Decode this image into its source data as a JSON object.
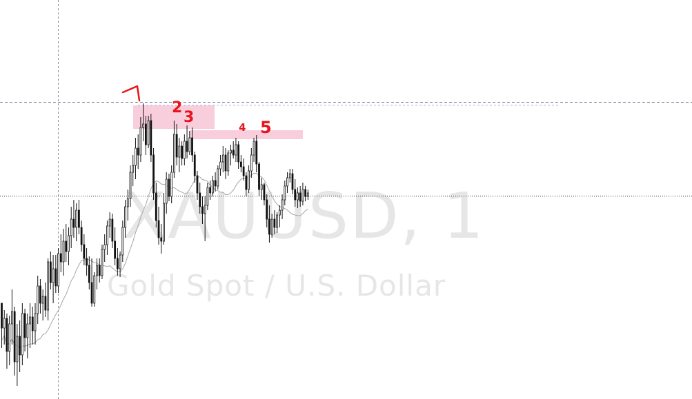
{
  "watermark": {
    "symbol": "XAUUSD, 1",
    "description": "Gold Spot / U.S. Dollar"
  },
  "colors": {
    "candle": "#111111",
    "moving_average": "#a6a6a6",
    "zone": "#f7c6d6",
    "annotation": "#e8141c",
    "guide_line": "#8a8fa8"
  },
  "annotations": [
    "1",
    "2",
    "3",
    "4",
    "5"
  ],
  "chart_data": {
    "type": "candlestick",
    "series": [
      {
        "o": 440,
        "h": 462,
        "l": 505,
        "c": 476
      },
      {
        "o": 476,
        "h": 450,
        "l": 500,
        "c": 462
      },
      {
        "o": 462,
        "h": 455,
        "l": 535,
        "c": 510
      },
      {
        "o": 510,
        "h": 458,
        "l": 530,
        "c": 470
      },
      {
        "o": 470,
        "h": 420,
        "l": 500,
        "c": 452
      },
      {
        "o": 452,
        "h": 445,
        "l": 545,
        "c": 525
      },
      {
        "o": 525,
        "h": 470,
        "l": 560,
        "c": 488
      },
      {
        "o": 488,
        "h": 465,
        "l": 540,
        "c": 515
      },
      {
        "o": 515,
        "h": 440,
        "l": 530,
        "c": 455
      },
      {
        "o": 455,
        "h": 448,
        "l": 510,
        "c": 490
      },
      {
        "o": 490,
        "h": 455,
        "l": 520,
        "c": 470
      },
      {
        "o": 470,
        "h": 440,
        "l": 505,
        "c": 460
      },
      {
        "o": 460,
        "h": 445,
        "l": 500,
        "c": 480
      },
      {
        "o": 480,
        "h": 440,
        "l": 500,
        "c": 455
      },
      {
        "o": 455,
        "h": 400,
        "l": 470,
        "c": 415
      },
      {
        "o": 415,
        "h": 405,
        "l": 455,
        "c": 440
      },
      {
        "o": 440,
        "h": 420,
        "l": 465,
        "c": 430
      },
      {
        "o": 430,
        "h": 410,
        "l": 460,
        "c": 450
      },
      {
        "o": 450,
        "h": 375,
        "l": 465,
        "c": 380
      },
      {
        "o": 380,
        "h": 365,
        "l": 420,
        "c": 410
      },
      {
        "o": 410,
        "h": 370,
        "l": 440,
        "c": 390
      },
      {
        "o": 390,
        "h": 370,
        "l": 425,
        "c": 415
      },
      {
        "o": 415,
        "h": 360,
        "l": 425,
        "c": 368
      },
      {
        "o": 368,
        "h": 340,
        "l": 395,
        "c": 380
      },
      {
        "o": 380,
        "h": 332,
        "l": 400,
        "c": 350
      },
      {
        "o": 350,
        "h": 325,
        "l": 380,
        "c": 365
      },
      {
        "o": 365,
        "h": 330,
        "l": 385,
        "c": 342
      },
      {
        "o": 342,
        "h": 300,
        "l": 360,
        "c": 318
      },
      {
        "o": 318,
        "h": 290,
        "l": 345,
        "c": 330
      },
      {
        "o": 330,
        "h": 295,
        "l": 350,
        "c": 305
      },
      {
        "o": 305,
        "h": 290,
        "l": 340,
        "c": 330
      },
      {
        "o": 330,
        "h": 320,
        "l": 365,
        "c": 355
      },
      {
        "o": 355,
        "h": 340,
        "l": 385,
        "c": 375
      },
      {
        "o": 375,
        "h": 360,
        "l": 400,
        "c": 385
      },
      {
        "o": 385,
        "h": 372,
        "l": 420,
        "c": 410
      },
      {
        "o": 410,
        "h": 375,
        "l": 445,
        "c": 440
      },
      {
        "o": 440,
        "h": 395,
        "l": 445,
        "c": 400
      },
      {
        "o": 400,
        "h": 375,
        "l": 420,
        "c": 385
      },
      {
        "o": 385,
        "h": 375,
        "l": 410,
        "c": 400
      },
      {
        "o": 400,
        "h": 355,
        "l": 405,
        "c": 362
      },
      {
        "o": 362,
        "h": 340,
        "l": 380,
        "c": 355
      },
      {
        "o": 355,
        "h": 320,
        "l": 370,
        "c": 328
      },
      {
        "o": 328,
        "h": 308,
        "l": 345,
        "c": 318
      },
      {
        "o": 318,
        "h": 310,
        "l": 360,
        "c": 350
      },
      {
        "o": 350,
        "h": 330,
        "l": 385,
        "c": 375
      },
      {
        "o": 375,
        "h": 360,
        "l": 400,
        "c": 390
      },
      {
        "o": 390,
        "h": 365,
        "l": 402,
        "c": 370
      },
      {
        "o": 370,
        "h": 320,
        "l": 380,
        "c": 330
      },
      {
        "o": 330,
        "h": 290,
        "l": 345,
        "c": 300
      },
      {
        "o": 300,
        "h": 275,
        "l": 320,
        "c": 288
      },
      {
        "o": 288,
        "h": 240,
        "l": 300,
        "c": 250
      },
      {
        "o": 250,
        "h": 225,
        "l": 270,
        "c": 240
      },
      {
        "o": 240,
        "h": 200,
        "l": 260,
        "c": 215
      },
      {
        "o": 215,
        "h": 195,
        "l": 245,
        "c": 225
      },
      {
        "o": 225,
        "h": 170,
        "l": 235,
        "c": 185
      },
      {
        "o": 185,
        "h": 150,
        "l": 205,
        "c": 180
      },
      {
        "o": 180,
        "h": 168,
        "l": 225,
        "c": 210
      },
      {
        "o": 210,
        "h": 168,
        "l": 215,
        "c": 175
      },
      {
        "o": 175,
        "h": 165,
        "l": 235,
        "c": 225
      },
      {
        "o": 225,
        "h": 215,
        "l": 290,
        "c": 280
      },
      {
        "o": 280,
        "h": 265,
        "l": 330,
        "c": 320
      },
      {
        "o": 320,
        "h": 300,
        "l": 355,
        "c": 345
      },
      {
        "o": 345,
        "h": 325,
        "l": 368,
        "c": 350
      },
      {
        "o": 350,
        "h": 280,
        "l": 355,
        "c": 295
      },
      {
        "o": 295,
        "h": 250,
        "l": 310,
        "c": 260
      },
      {
        "o": 260,
        "h": 252,
        "l": 292,
        "c": 285
      },
      {
        "o": 285,
        "h": 240,
        "l": 295,
        "c": 250
      },
      {
        "o": 250,
        "h": 175,
        "l": 258,
        "c": 195
      },
      {
        "o": 195,
        "h": 180,
        "l": 240,
        "c": 228
      },
      {
        "o": 228,
        "h": 200,
        "l": 250,
        "c": 212
      },
      {
        "o": 212,
        "h": 205,
        "l": 240,
        "c": 230
      },
      {
        "o": 230,
        "h": 195,
        "l": 240,
        "c": 205
      },
      {
        "o": 205,
        "h": 182,
        "l": 230,
        "c": 220
      },
      {
        "o": 220,
        "h": 190,
        "l": 225,
        "c": 200
      },
      {
        "o": 200,
        "h": 185,
        "l": 235,
        "c": 225
      },
      {
        "o": 225,
        "h": 220,
        "l": 265,
        "c": 255
      },
      {
        "o": 255,
        "h": 248,
        "l": 290,
        "c": 280
      },
      {
        "o": 280,
        "h": 265,
        "l": 310,
        "c": 300
      },
      {
        "o": 300,
        "h": 285,
        "l": 325,
        "c": 310
      },
      {
        "o": 310,
        "h": 285,
        "l": 350,
        "c": 298
      },
      {
        "o": 298,
        "h": 265,
        "l": 305,
        "c": 272
      },
      {
        "o": 272,
        "h": 262,
        "l": 290,
        "c": 280
      },
      {
        "o": 280,
        "h": 255,
        "l": 285,
        "c": 262
      },
      {
        "o": 262,
        "h": 250,
        "l": 278,
        "c": 270
      },
      {
        "o": 270,
        "h": 240,
        "l": 275,
        "c": 245
      },
      {
        "o": 245,
        "h": 225,
        "l": 255,
        "c": 235
      },
      {
        "o": 235,
        "h": 212,
        "l": 250,
        "c": 225
      },
      {
        "o": 225,
        "h": 215,
        "l": 260,
        "c": 248
      },
      {
        "o": 248,
        "h": 218,
        "l": 255,
        "c": 222
      },
      {
        "o": 222,
        "h": 210,
        "l": 240,
        "c": 218
      },
      {
        "o": 218,
        "h": 205,
        "l": 230,
        "c": 225
      },
      {
        "o": 225,
        "h": 200,
        "l": 235,
        "c": 210
      },
      {
        "o": 210,
        "h": 205,
        "l": 245,
        "c": 235
      },
      {
        "o": 235,
        "h": 225,
        "l": 250,
        "c": 242
      },
      {
        "o": 242,
        "h": 230,
        "l": 262,
        "c": 255
      },
      {
        "o": 255,
        "h": 250,
        "l": 285,
        "c": 275
      },
      {
        "o": 275,
        "h": 240,
        "l": 280,
        "c": 248
      },
      {
        "o": 248,
        "h": 215,
        "l": 258,
        "c": 225
      },
      {
        "o": 225,
        "h": 200,
        "l": 235,
        "c": 205
      },
      {
        "o": 205,
        "h": 196,
        "l": 250,
        "c": 238
      },
      {
        "o": 238,
        "h": 235,
        "l": 285,
        "c": 275
      },
      {
        "o": 275,
        "h": 258,
        "l": 290,
        "c": 268
      },
      {
        "o": 268,
        "h": 265,
        "l": 298,
        "c": 290
      },
      {
        "o": 290,
        "h": 282,
        "l": 330,
        "c": 318
      },
      {
        "o": 318,
        "h": 298,
        "l": 352,
        "c": 340
      },
      {
        "o": 340,
        "h": 310,
        "l": 345,
        "c": 318
      },
      {
        "o": 318,
        "h": 305,
        "l": 340,
        "c": 330
      },
      {
        "o": 330,
        "h": 308,
        "l": 338,
        "c": 312
      },
      {
        "o": 312,
        "h": 298,
        "l": 330,
        "c": 305
      },
      {
        "o": 305,
        "h": 282,
        "l": 318,
        "c": 290
      },
      {
        "o": 290,
        "h": 262,
        "l": 298,
        "c": 270
      },
      {
        "o": 270,
        "h": 250,
        "l": 280,
        "c": 258
      },
      {
        "o": 258,
        "h": 245,
        "l": 265,
        "c": 252
      },
      {
        "o": 252,
        "h": 245,
        "l": 282,
        "c": 275
      },
      {
        "o": 275,
        "h": 260,
        "l": 300,
        "c": 290
      },
      {
        "o": 290,
        "h": 272,
        "l": 302,
        "c": 280
      },
      {
        "o": 280,
        "h": 270,
        "l": 300,
        "c": 292
      },
      {
        "o": 292,
        "h": 265,
        "l": 298,
        "c": 275
      },
      {
        "o": 275,
        "h": 270,
        "l": 292,
        "c": 285
      },
      {
        "o": 285,
        "h": 275,
        "l": 290,
        "c": 280
      }
    ]
  }
}
